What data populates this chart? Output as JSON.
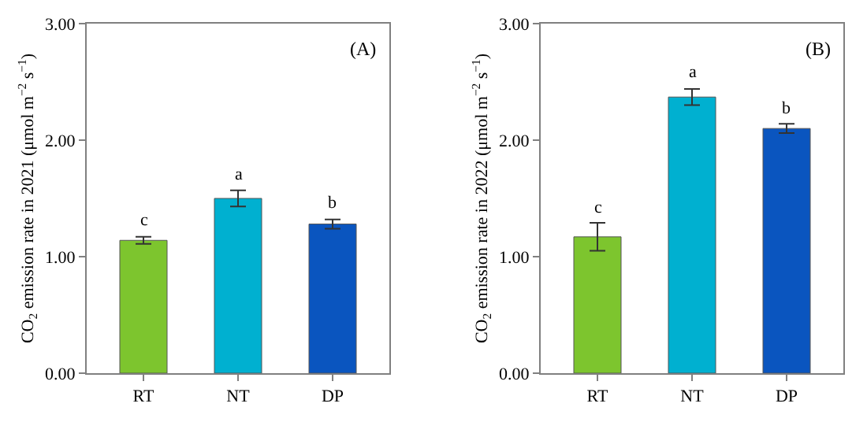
{
  "chart_data": [
    {
      "type": "bar",
      "categories": [
        "RT",
        "NT",
        "DP"
      ],
      "values": [
        1.14,
        1.5,
        1.28
      ],
      "errors": [
        0.03,
        0.07,
        0.04
      ],
      "colors": [
        "#7dc52e",
        "#00b0d0",
        "#0a55bf"
      ],
      "ylabel": "CO$_{2}$ emission rate in 2021 (μmol m$^{−2}$ s$^{−1}$)",
      "ylim": [
        0,
        3
      ],
      "yticks": [
        {
          "value": 0,
          "label": "0.00"
        },
        {
          "value": 1,
          "label": "1.00"
        },
        {
          "value": 2,
          "label": "2.00"
        },
        {
          "value": 3,
          "label": "3.00"
        }
      ],
      "annotations": [
        "(A)",
        {
          "text": "c",
          "x": "RT",
          "y": 1.17
        },
        {
          "text": "a",
          "x": "NT",
          "y": 1.57
        },
        {
          "text": "b",
          "x": "DP",
          "y": 1.32
        }
      ]
    },
    {
      "type": "bar",
      "categories": [
        "RT",
        "NT",
        "DP"
      ],
      "values": [
        1.17,
        2.37,
        2.1
      ],
      "errors": [
        0.12,
        0.07,
        0.04
      ],
      "colors": [
        "#7dc52e",
        "#00b0d0",
        "#0a55bf"
      ],
      "ylabel": "CO$_{2}$ emission rate in 2022 (μmol m$^{−2}$ s$^{−1}$)",
      "ylim": [
        0,
        3
      ],
      "yticks": [
        {
          "value": 0,
          "label": "0.00"
        },
        {
          "value": 1,
          "label": "1.00"
        },
        {
          "value": 2,
          "label": "2.00"
        },
        {
          "value": 3,
          "label": "3.00"
        }
      ],
      "annotations": [
        "(B)",
        {
          "text": "c",
          "x": "RT",
          "y": 1.29
        },
        {
          "text": "a",
          "x": "NT",
          "y": 2.44
        },
        {
          "text": "b",
          "x": "DP",
          "y": 2.14
        }
      ]
    }
  ]
}
